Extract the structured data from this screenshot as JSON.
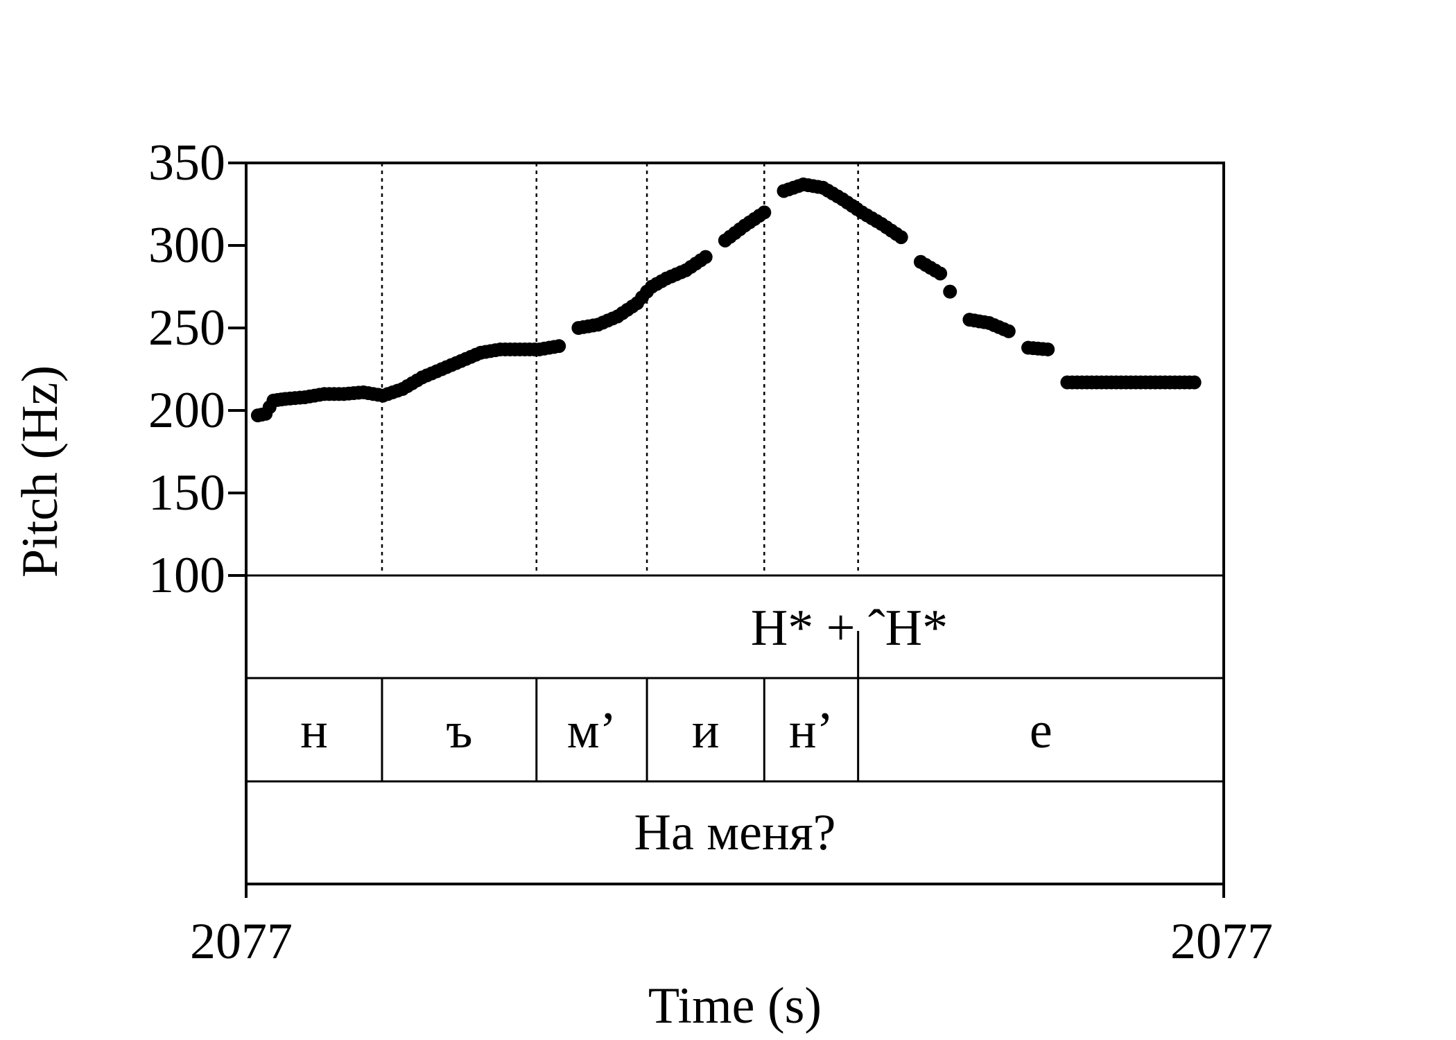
{
  "chart_data": {
    "type": "scatter",
    "title": "",
    "xlabel": "Time (s)",
    "ylabel": "Pitch (Hz)",
    "ylim": [
      100,
      350
    ],
    "yticks": [
      100,
      150,
      200,
      250,
      300,
      350
    ],
    "x_range": [
      0,
      1
    ],
    "x_tick_labels": [
      "2077",
      "2077"
    ],
    "grid": false,
    "series": [
      {
        "color": "#000000",
        "x": [
          0.012,
          0.02,
          0.028,
          0.04,
          0.06,
          0.08,
          0.1,
          0.12,
          0.14,
          0.16,
          0.18,
          0.2,
          0.22,
          0.24,
          0.26,
          0.28,
          0.3,
          0.32,
          0.34,
          0.36,
          0.38,
          0.4,
          0.41,
          0.415,
          0.43,
          0.45,
          0.47,
          0.49,
          0.51,
          0.53,
          0.55,
          0.57,
          0.59,
          0.61,
          0.63,
          0.65,
          0.67,
          0.69,
          0.71,
          0.72,
          0.74,
          0.76,
          0.78,
          0.8,
          0.82,
          0.84,
          0.86,
          0.88,
          0.885,
          0.89,
          0.9,
          0.905,
          0.915,
          0.93,
          0.935,
          0.96,
          0.965,
          0.97
        ],
        "y": [
          197,
          198,
          206,
          207,
          208,
          210,
          210,
          211,
          209,
          213,
          220,
          225,
          230,
          235,
          237,
          237,
          237,
          239,
          250,
          252,
          257,
          265,
          272,
          275,
          280,
          285,
          293,
          303,
          312,
          320,
          333,
          337,
          335,
          328,
          320,
          313,
          305,
          290,
          283,
          272,
          255,
          253,
          248,
          238,
          237,
          217,
          217,
          217,
          217,
          217,
          217,
          217,
          217,
          217,
          217,
          217,
          217,
          217
        ]
      }
    ]
  },
  "tiers": {
    "tones": {
      "label": "H* + ˆH*",
      "boundary_x": 0.626
    },
    "segments": [
      {
        "text": "н",
        "start": 0.0,
        "end": 0.139
      },
      {
        "text": "ъ",
        "start": 0.139,
        "end": 0.297
      },
      {
        "text": "м’",
        "start": 0.297,
        "end": 0.41
      },
      {
        "text": "и",
        "start": 0.41,
        "end": 0.53
      },
      {
        "text": "н’",
        "start": 0.53,
        "end": 0.626
      },
      {
        "text": "е",
        "start": 0.626,
        "end": 1.0
      }
    ],
    "phrase": "На меня?"
  }
}
